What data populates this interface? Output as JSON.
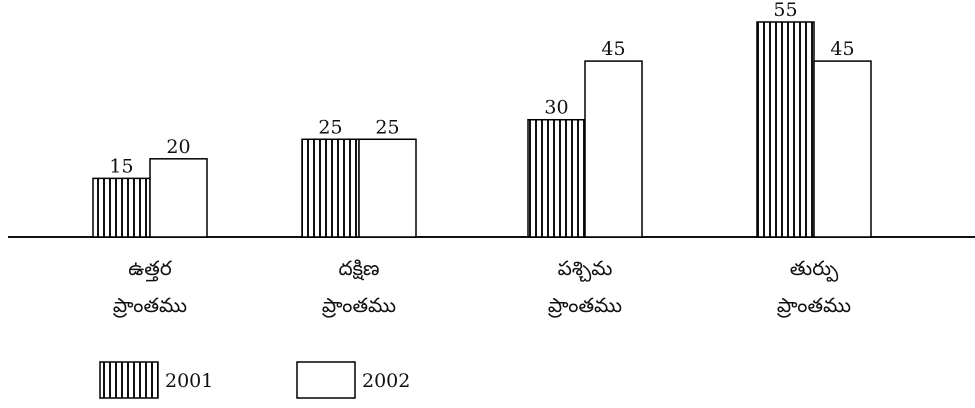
{
  "chart_data": {
    "type": "bar",
    "categories": [
      [
        "ఉత్తర",
        "ప్రాంతము"
      ],
      [
        "దక్షిణ",
        "ప్రాంతము"
      ],
      [
        "పశ్చిమ",
        "ప్రాంతము"
      ],
      [
        "తుర్పు",
        "ప్రాంతము"
      ]
    ],
    "series": [
      {
        "name": "2001",
        "color": "#000000",
        "pattern": "vertical-lines",
        "values": [
          15,
          25,
          30,
          55
        ]
      },
      {
        "name": "2002",
        "color": "#000000",
        "pattern": "none",
        "values": [
          20,
          25,
          45,
          45
        ]
      }
    ]
  }
}
